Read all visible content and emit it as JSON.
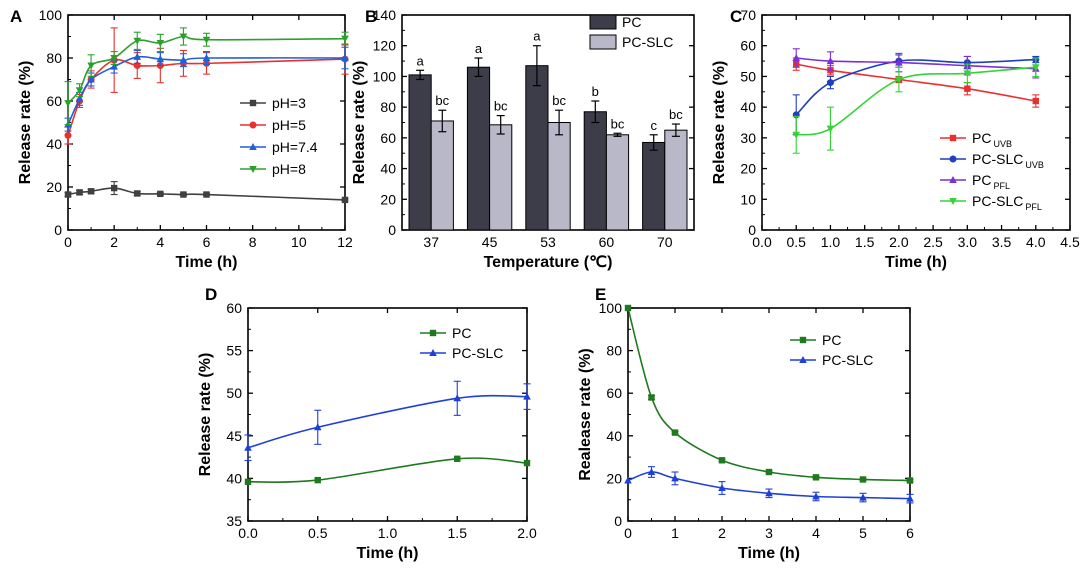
{
  "chart_data": [
    {
      "panel": "A",
      "type": "line",
      "xlabel": "Time (h)",
      "ylabel": "Release rate (%)",
      "xlim": [
        0,
        12
      ],
      "ylim": [
        0,
        100
      ],
      "xticks": [
        0,
        2,
        4,
        6,
        8,
        10,
        12
      ],
      "yticks": [
        0,
        20,
        40,
        60,
        80,
        100
      ],
      "legend_position": "center-right",
      "series": [
        {
          "name": "pH=3",
          "color": "#404040",
          "marker": "square",
          "x": [
            0,
            0.5,
            1,
            2,
            3,
            4,
            5,
            6,
            12
          ],
          "y": [
            16.5,
            17.5,
            18,
            19.5,
            17,
            16.8,
            16.5,
            16.5,
            14
          ],
          "err": [
            1,
            1,
            1,
            3,
            1,
            0.5,
            0.5,
            0.5,
            0.5
          ]
        },
        {
          "name": "pH=5",
          "color": "#e8312f",
          "marker": "circle",
          "x": [
            0,
            0.5,
            1,
            2,
            3,
            4,
            5,
            6,
            12
          ],
          "y": [
            44,
            60,
            70,
            79,
            76.5,
            76.5,
            77.5,
            77.5,
            79.5
          ],
          "err": [
            4,
            3,
            4,
            15,
            6,
            8,
            6,
            5,
            7
          ]
        },
        {
          "name": "pH=7.4",
          "color": "#1f5fd9",
          "marker": "triangle-up",
          "x": [
            0,
            0.5,
            1,
            2,
            3,
            4,
            5,
            6,
            12
          ],
          "y": [
            49,
            61,
            70,
            76,
            80.5,
            79.5,
            79,
            80,
            80
          ],
          "err": [
            3,
            3,
            3,
            3,
            3,
            3,
            3,
            3,
            5
          ]
        },
        {
          "name": "pH=8",
          "color": "#2ca02c",
          "marker": "triangle-down",
          "x": [
            0,
            0.5,
            1,
            2,
            3,
            4,
            5,
            6,
            12
          ],
          "y": [
            59,
            65,
            76.5,
            80,
            88,
            87,
            90,
            88.5,
            89
          ],
          "err": [
            10,
            3,
            5,
            3,
            4,
            4,
            4,
            3,
            3
          ]
        }
      ]
    },
    {
      "panel": "B",
      "type": "bar",
      "xlabel": "Temperature (℃)",
      "ylabel": "Release rate (%)",
      "ylim": [
        0,
        140
      ],
      "yticks": [
        0,
        20,
        40,
        60,
        80,
        100,
        120,
        140
      ],
      "categories": [
        "37",
        "45",
        "53",
        "60",
        "70"
      ],
      "legend_position": "top-right",
      "series": [
        {
          "name": "PC",
          "color": "#3d3d4a",
          "values": [
            101,
            106,
            107,
            77,
            57
          ],
          "err": [
            3,
            6,
            13,
            7,
            5
          ],
          "labels": [
            "a",
            "a",
            "a",
            "b",
            "c"
          ]
        },
        {
          "name": "PC-SLC",
          "color": "#b8b8c8",
          "values": [
            71,
            68.5,
            70,
            62,
            65
          ],
          "err": [
            7,
            6,
            8,
            1,
            4
          ],
          "labels": [
            "bc",
            "bc",
            "bc",
            "bc",
            "bc"
          ]
        }
      ]
    },
    {
      "panel": "C",
      "type": "line",
      "xlabel": "Time (h)",
      "ylabel": "Release rate (%)",
      "xlim": [
        0,
        4.5
      ],
      "ylim": [
        0,
        70
      ],
      "xticks": [
        "0.0",
        "0.5",
        "1.0",
        "1.5",
        "2.0",
        "2.5",
        "3.0",
        "3.5",
        "4.0",
        "4.5"
      ],
      "yticks": [
        0,
        10,
        20,
        30,
        40,
        50,
        60,
        70
      ],
      "legend_position": "bottom-right",
      "series": [
        {
          "name": "PC",
          "sub": "UVB",
          "color": "#e8312f",
          "marker": "square",
          "x": [
            0.5,
            1,
            2,
            3,
            4
          ],
          "y": [
            54,
            52,
            49,
            46,
            42
          ],
          "err": [
            2,
            1.5,
            1,
            2,
            2
          ]
        },
        {
          "name": "PC-SLC",
          "sub": "UVB",
          "color": "#1f3fbf",
          "marker": "circle",
          "x": [
            0.5,
            1,
            2,
            3,
            4
          ],
          "y": [
            37.5,
            48,
            55,
            54.5,
            55.5
          ],
          "err": [
            6.5,
            2,
            2,
            2,
            1
          ]
        },
        {
          "name": "PC",
          "sub": "PFL",
          "color": "#7b2fd9",
          "marker": "triangle-up",
          "x": [
            0.5,
            1,
            2,
            3,
            4
          ],
          "y": [
            56,
            55,
            54.5,
            53.5,
            52.5
          ],
          "err": [
            3,
            3,
            3,
            3,
            3
          ]
        },
        {
          "name": "PC-SLC",
          "sub": "PFL",
          "color": "#35d335",
          "marker": "triangle-down",
          "x": [
            0.5,
            1,
            2,
            3,
            4
          ],
          "y": [
            31,
            33,
            49,
            51,
            53
          ],
          "err": [
            6,
            7,
            4,
            3,
            3
          ]
        }
      ]
    },
    {
      "panel": "D",
      "type": "line",
      "xlabel": "Time (h)",
      "ylabel": "Release rate (%)",
      "xlim": [
        0,
        2
      ],
      "ylim": [
        35,
        60
      ],
      "xticks": [
        "0.0",
        "0.5",
        "1.0",
        "1.5",
        "2.0"
      ],
      "yticks": [
        35,
        40,
        45,
        50,
        55,
        60
      ],
      "legend_position": "top-right",
      "series": [
        {
          "name": "PC",
          "color": "#1f7a1f",
          "marker": "square",
          "x": [
            0,
            0.5,
            1.5,
            2
          ],
          "y": [
            39.6,
            39.8,
            42.3,
            41.8
          ],
          "err": [
            0,
            0,
            0,
            0
          ]
        },
        {
          "name": "PC-SLC",
          "color": "#1f3fd9",
          "marker": "triangle-up",
          "x": [
            0,
            0.5,
            1.5,
            2
          ],
          "y": [
            43.6,
            46,
            49.4,
            49.6
          ],
          "err": [
            1.5,
            2,
            2,
            1.5
          ]
        }
      ]
    },
    {
      "panel": "E",
      "type": "line",
      "xlabel": "Time (h)",
      "ylabel": "Realease rate (%)",
      "xlim": [
        0,
        6
      ],
      "ylim": [
        0,
        100
      ],
      "xticks": [
        0,
        1,
        2,
        3,
        4,
        5,
        6
      ],
      "yticks": [
        0,
        20,
        40,
        60,
        80,
        100
      ],
      "legend_position": "top-right",
      "series": [
        {
          "name": "PC",
          "color": "#1f7a1f",
          "marker": "square",
          "x": [
            0,
            0.5,
            1,
            2,
            3,
            4,
            5,
            6
          ],
          "y": [
            100,
            58,
            41.5,
            28.5,
            23,
            20.5,
            19.5,
            19
          ],
          "err": [
            0,
            1,
            0.5,
            0.5,
            0.5,
            0.5,
            0.5,
            0.5
          ]
        },
        {
          "name": "PC-SLC",
          "color": "#1f3fd9",
          "marker": "triangle-up",
          "x": [
            0,
            0.5,
            1,
            2,
            3,
            4,
            5,
            6
          ],
          "y": [
            19,
            23,
            20,
            15.5,
            13,
            11.5,
            11,
            10.5
          ],
          "err": [
            0,
            2.5,
            3,
            3,
            2,
            2,
            2,
            2
          ]
        }
      ]
    }
  ]
}
